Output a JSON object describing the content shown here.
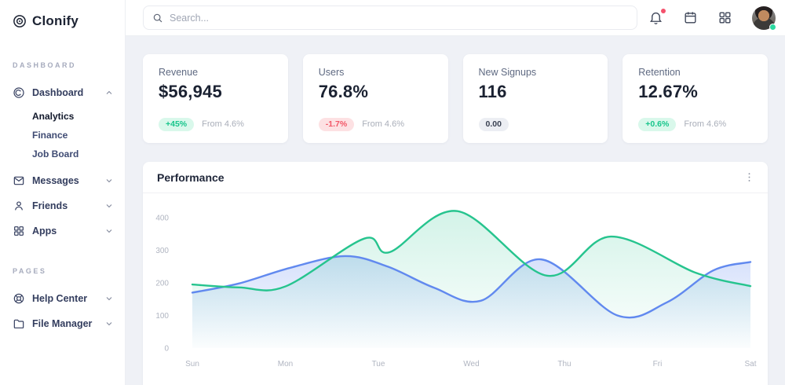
{
  "app": {
    "logo_text": "Clonify"
  },
  "sidebar": {
    "sections": [
      {
        "label": "DASHBOARD",
        "items": [
          {
            "label": "Dashboard",
            "expanded": true,
            "children": [
              {
                "label": "Analytics",
                "active": true
              },
              {
                "label": "Finance",
                "active": false
              },
              {
                "label": "Job Board",
                "active": false
              }
            ]
          },
          {
            "label": "Messages"
          },
          {
            "label": "Friends"
          },
          {
            "label": "Apps"
          }
        ]
      },
      {
        "label": "PAGES",
        "items": [
          {
            "label": "Help Center"
          },
          {
            "label": "File Manager"
          }
        ]
      }
    ]
  },
  "topbar": {
    "search_placeholder": "Search...",
    "has_notification": true,
    "user_status": "online"
  },
  "cards": [
    {
      "title": "Revenue",
      "value": "$56,945",
      "badge": "+45%",
      "tone": "up",
      "note": "From 4.6%"
    },
    {
      "title": "Users",
      "value": "76.8%",
      "badge": "-1.7%",
      "tone": "down",
      "note": "From 4.6%"
    },
    {
      "title": "New Signups",
      "value": "116",
      "badge": "0.00",
      "tone": "neutral",
      "note": ""
    },
    {
      "title": "Retention",
      "value": "12.67%",
      "badge": "+0.6%",
      "tone": "up",
      "note": "From 4.6%"
    }
  ],
  "chart_data": {
    "type": "area",
    "title": "Performance",
    "x_labels": [
      "Sun",
      "Mon",
      "Tue",
      "Wed",
      "Thu",
      "Fri",
      "Sat"
    ],
    "y_ticks": [
      0,
      100,
      200,
      300,
      400
    ],
    "ylim": [
      0,
      430
    ],
    "grid": false,
    "legend": "none",
    "tick_color": "#b0b5c1",
    "series": [
      {
        "name": "series-blue",
        "color": "#6189ef",
        "points": [
          [
            0,
            170
          ],
          [
            0.5,
            198
          ],
          [
            1.05,
            246
          ],
          [
            1.64,
            282
          ],
          [
            2.1,
            250
          ],
          [
            2.6,
            185
          ],
          [
            3.1,
            145
          ],
          [
            3.75,
            272
          ],
          [
            4.57,
            100
          ],
          [
            5.1,
            140
          ],
          [
            5.6,
            238
          ],
          [
            6,
            264
          ]
        ]
      },
      {
        "name": "series-green",
        "color": "#26c48e",
        "points": [
          [
            0,
            195
          ],
          [
            0.5,
            186
          ],
          [
            1,
            189
          ],
          [
            1.85,
            336
          ],
          [
            2.12,
            294
          ],
          [
            2.85,
            420
          ],
          [
            3.81,
            222
          ],
          [
            4.5,
            342
          ],
          [
            5.42,
            230
          ],
          [
            6,
            190
          ]
        ]
      }
    ]
  }
}
